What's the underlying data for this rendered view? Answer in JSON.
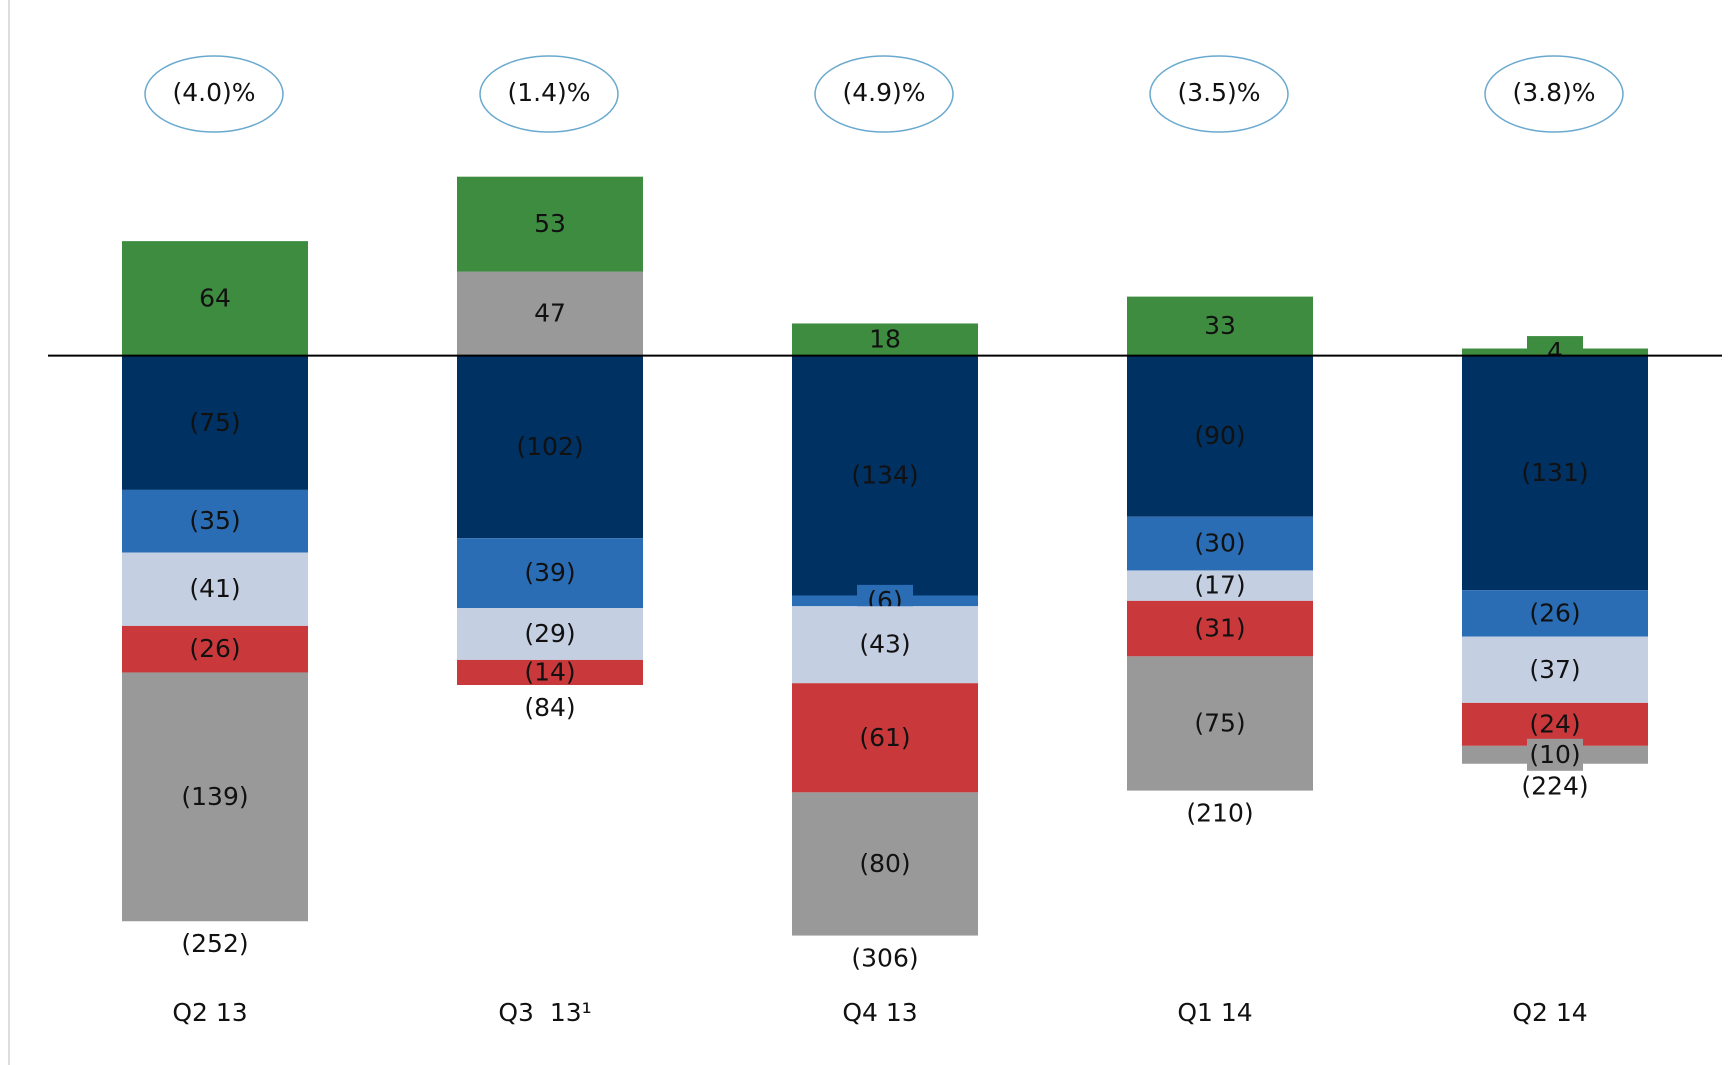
{
  "chart_data": {
    "type": "stacked_bar",
    "categories": [
      "Q2 13",
      "Q3  13¹",
      "Q4 13",
      "Q1 14",
      "Q2 14"
    ],
    "ylim": [
      -360,
      130
    ],
    "series": [
      {
        "color": "#3d8c40",
        "values": [
          64,
          53,
          18,
          33,
          4
        ],
        "value_labels": [
          "64",
          "53",
          "18",
          "33",
          "4"
        ]
      },
      {
        "color": "#003163",
        "values": [
          -75,
          -102,
          -134,
          -90,
          -131
        ],
        "value_labels": [
          "(75)",
          "(102)",
          "(134)",
          "(90)",
          "(131)"
        ]
      },
      {
        "color": "#2a6db5",
        "values": [
          -35,
          -39,
          -6,
          -30,
          -26
        ],
        "value_labels": [
          "(35)",
          "(39)",
          "(6)",
          "(30)",
          "(26)"
        ]
      },
      {
        "color": "#c5cfe2",
        "values": [
          -41,
          -29,
          -43,
          -17,
          -37
        ],
        "value_labels": [
          "(41)",
          "(29)",
          "(43)",
          "(17)",
          "(37)"
        ]
      },
      {
        "color": "#c9393b",
        "values": [
          -26,
          -14,
          -61,
          -31,
          -24
        ],
        "value_labels": [
          "(26)",
          "(14)",
          "(61)",
          "(31)",
          "(24)"
        ]
      },
      {
        "color": "#999999",
        "values": [
          -139,
          47,
          -80,
          -75,
          -10
        ],
        "value_labels": [
          "(139)",
          "47",
          "(80)",
          "(75)",
          "(10)"
        ]
      }
    ],
    "totals": [
      -252,
      -84,
      -306,
      -210,
      -224
    ],
    "total_labels": [
      "(252)",
      "(84)",
      "(306)",
      "(210)",
      "(224)"
    ],
    "margins": [
      -4.0,
      -1.4,
      -4.9,
      -3.5,
      -3.8
    ],
    "margin_labels": [
      "(4.0)%",
      "(1.4)%",
      "(4.9)%",
      "(3.5)%",
      "(3.8)%"
    ]
  }
}
